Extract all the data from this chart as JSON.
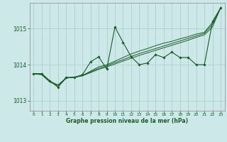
{
  "xlabel": "Graphe pression niveau de la mer (hPa)",
  "bg_color": "#cce8e8",
  "grid_color": "#aacccc",
  "line_color": "#1a5c28",
  "ylim": [
    1012.72,
    1015.72
  ],
  "yticks": [
    1013,
    1014,
    1015
  ],
  "xlim": [
    -0.5,
    23.5
  ],
  "xticks": [
    0,
    1,
    2,
    3,
    4,
    5,
    6,
    7,
    8,
    9,
    10,
    11,
    12,
    13,
    14,
    15,
    16,
    17,
    18,
    19,
    20,
    21,
    22,
    23
  ],
  "series_main": [
    1013.75,
    1013.75,
    1013.55,
    1013.38,
    1013.65,
    1013.65,
    1013.72,
    1014.08,
    1014.22,
    1013.88,
    1015.05,
    1014.62,
    1014.22,
    1014.0,
    1014.05,
    1014.28,
    1014.2,
    1014.35,
    1014.2,
    1014.2,
    1014.0,
    1014.0,
    1015.2,
    1015.58
  ],
  "series_trend1": [
    1013.75,
    1013.75,
    1013.55,
    1013.38,
    1013.63,
    1013.65,
    1013.7,
    1013.82,
    1013.94,
    1014.0,
    1014.1,
    1014.2,
    1014.3,
    1014.38,
    1014.45,
    1014.53,
    1014.6,
    1014.65,
    1014.72,
    1014.78,
    1014.85,
    1014.9,
    1015.18,
    1015.58
  ],
  "series_trend2": [
    1013.75,
    1013.72,
    1013.52,
    1013.42,
    1013.63,
    1013.65,
    1013.69,
    1013.78,
    1013.87,
    1013.94,
    1014.02,
    1014.1,
    1014.18,
    1014.26,
    1014.33,
    1014.4,
    1014.47,
    1014.54,
    1014.61,
    1014.68,
    1014.76,
    1014.83,
    1015.05,
    1015.58
  ],
  "series_trend3": [
    1013.75,
    1013.74,
    1013.54,
    1013.44,
    1013.63,
    1013.65,
    1013.7,
    1013.8,
    1013.9,
    1013.97,
    1014.06,
    1014.14,
    1014.23,
    1014.31,
    1014.38,
    1014.45,
    1014.52,
    1014.59,
    1014.66,
    1014.73,
    1014.8,
    1014.87,
    1015.12,
    1015.58
  ]
}
